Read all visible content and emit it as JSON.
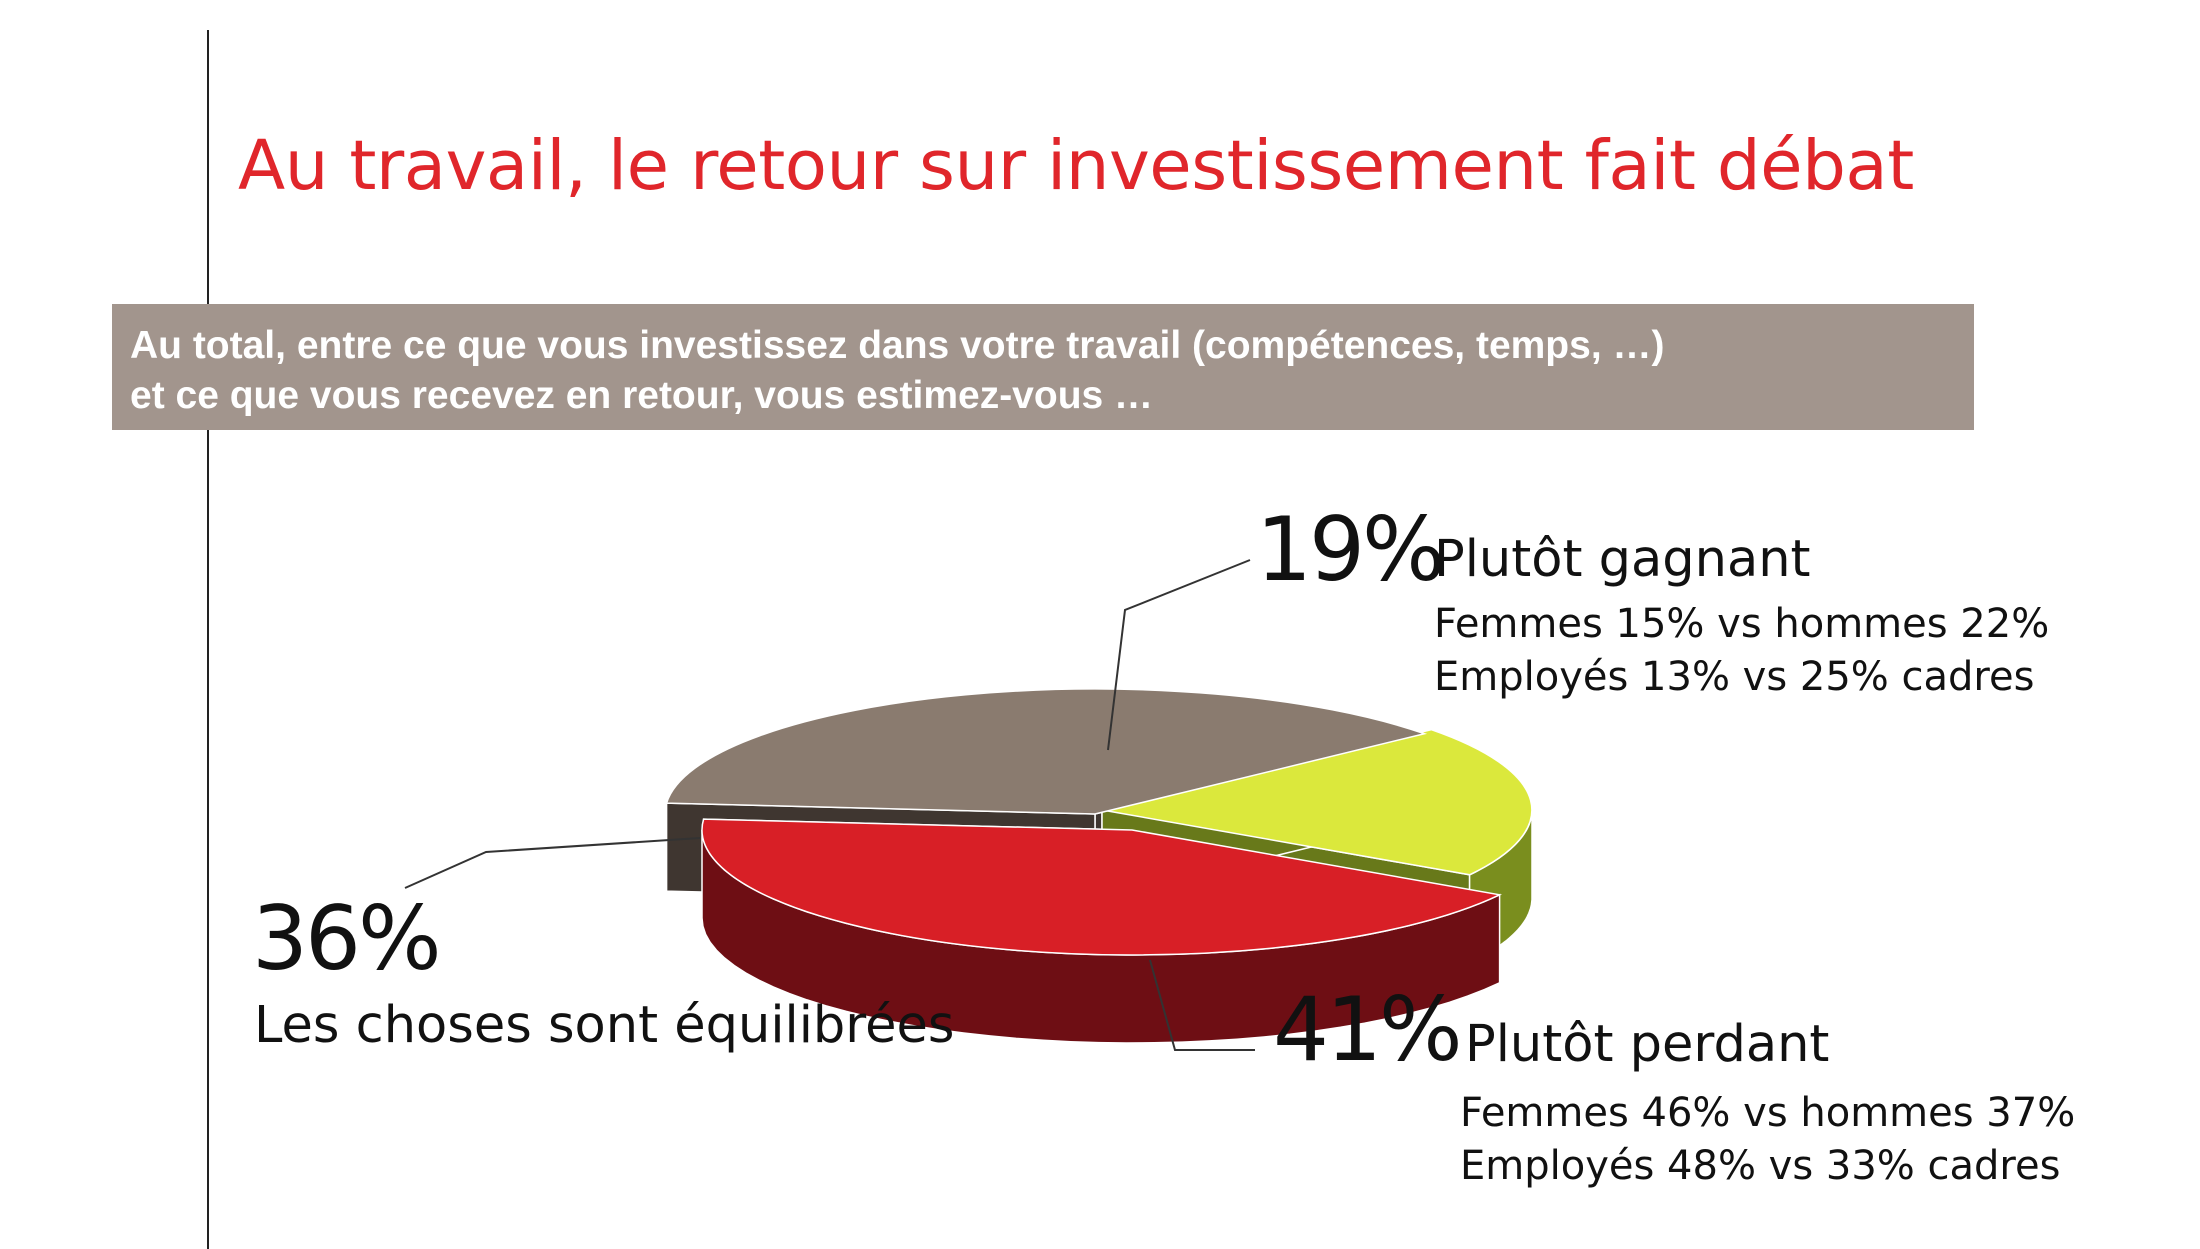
{
  "title": "Au travail, le retour sur investissement fait débat",
  "question": {
    "line1": "Au total, entre ce que vous investissez dans votre travail (compétences, temps, …)",
    "line2": "et ce que vous recevez en retour, vous estimez-vous …"
  },
  "chart_data": {
    "type": "pie",
    "style": "3d-exploded",
    "slices": [
      {
        "label": "Plutôt gagnant",
        "value": 19,
        "value_label": "19%",
        "color": "#dbe83c",
        "details": [
          "Femmes 15% vs hommes 22%",
          "Employés 13% vs 25% cadres"
        ]
      },
      {
        "label": "Plutôt perdant",
        "value": 41,
        "value_label": "41%",
        "color": "#d81f26",
        "details": [
          "Femmes 46% vs hommes 37%",
          "Employés 48% vs 33% cadres"
        ]
      },
      {
        "label": "Les choses sont équilibrées",
        "value": 36,
        "value_label": "36%",
        "color": "#8a7b6f",
        "details": []
      }
    ]
  }
}
